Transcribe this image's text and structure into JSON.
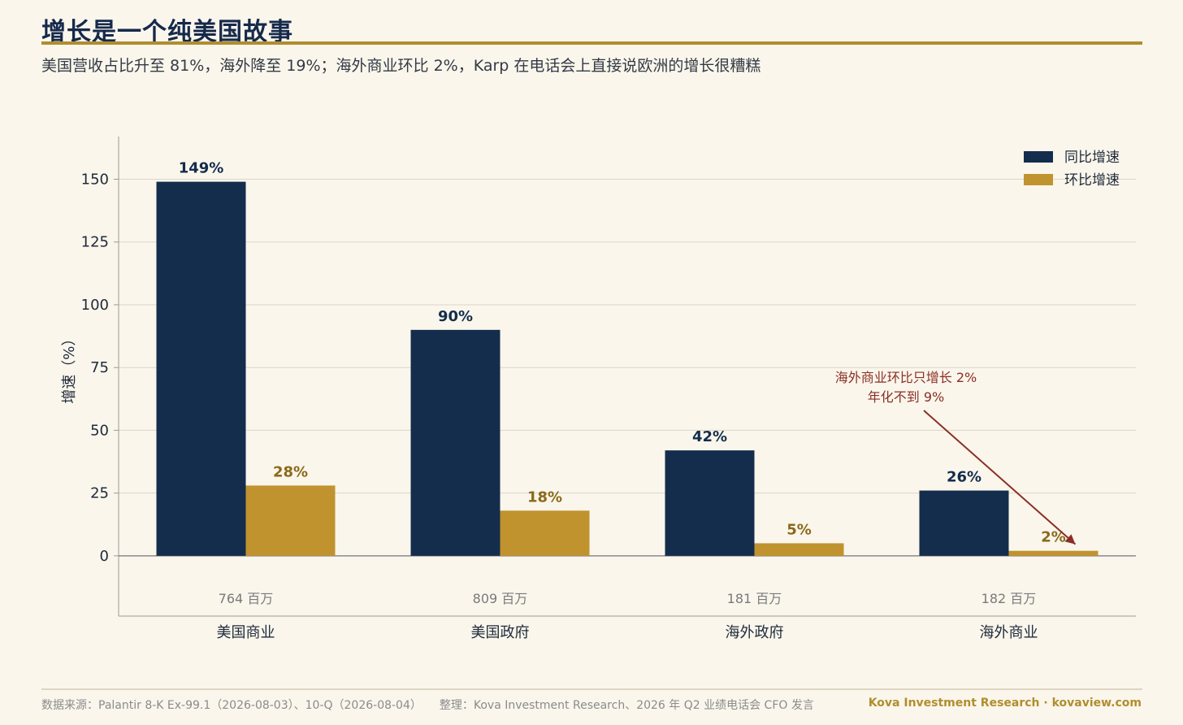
{
  "header": {
    "title": "增长是一个纯美国故事",
    "subtitle": "美国营收占比升至 81%，海外降至 19%；海外商业环比 2%，Karp 在电话会上直接说欧洲的增长很糟糕"
  },
  "footer": {
    "source": "数据来源：Palantir 8-K Ex-99.1（2026-08-03）、10-Q（2026-08-04）",
    "compiled": "整理：Kova Investment Research、2026 年 Q2 业绩电话会 CFO 发言",
    "brand": "Kova Investment Research · kovaview.com"
  },
  "colors": {
    "yoy": "#142d4c",
    "qoq": "#c0932f",
    "qoq_label": "#8a6a1a",
    "annotation": "#8b2e24",
    "grid": "#dcd6c8",
    "axis": "#9a9a9a",
    "revenue_label": "#7a7a7a"
  },
  "chart_data": {
    "type": "bar",
    "categories": [
      "美国商业",
      "美国政府",
      "海外政府",
      "海外商业"
    ],
    "series": [
      {
        "name": "同比增速",
        "values": [
          149,
          90,
          42,
          26
        ],
        "labels": [
          "149%",
          "90%",
          "42%",
          "26%"
        ]
      },
      {
        "name": "环比增速",
        "values": [
          28,
          18,
          5,
          2
        ],
        "labels": [
          "28%",
          "18%",
          "5%",
          "2%"
        ]
      }
    ],
    "revenue_labels": [
      "764 百万",
      "809 百万",
      "181 百万",
      "182 百万"
    ],
    "ylabel": "增速（%）",
    "ylim": [
      -24,
      167
    ],
    "yticks": [
      0,
      25,
      50,
      75,
      100,
      125,
      150
    ],
    "grid": true,
    "legend": "top-right",
    "annotation": {
      "lines": [
        "海外商业环比只增长 2%",
        "年化不到 9%"
      ],
      "target_category": "海外商业",
      "target_series": "环比增速"
    }
  }
}
